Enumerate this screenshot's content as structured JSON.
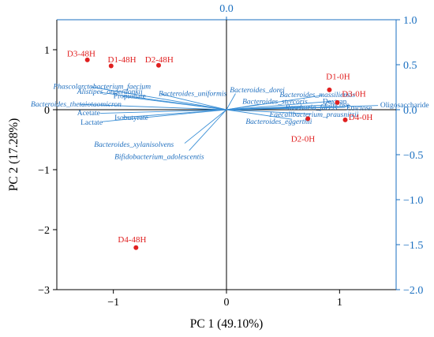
{
  "chart_data": {
    "type": "scatter",
    "subtype": "pca-biplot",
    "xlabel": "PC 1 (49.10%)",
    "ylabel": "PC 2 (17.28%)",
    "xlim": [
      -1.5,
      1.5
    ],
    "ylim": [
      -3,
      1.5
    ],
    "x_ticks": [
      -1,
      0,
      1
    ],
    "x_tick_labels": [
      "−1",
      "0",
      "1"
    ],
    "y_ticks": [
      1,
      0,
      -1,
      -2,
      -3
    ],
    "y_tick_labels": [
      "1",
      "0",
      "−1",
      "−2",
      "−3"
    ],
    "secondary_axes": {
      "color": "#1a6fc0",
      "top_tick_label": "0.0",
      "right_ylim": [
        -2.0,
        1.0
      ],
      "right_ticks": [
        1.0,
        0.5,
        0.0,
        -0.5,
        -1.0,
        -1.5,
        -2.0
      ],
      "right_tick_labels": [
        "1.0",
        "0.5",
        "0.0",
        "−0.5",
        "−1.0",
        "−1.5",
        "−2.0"
      ]
    },
    "grid": false,
    "zero_lines": true,
    "colors": {
      "scores": "#e02020",
      "loadings": "#3a8fd6",
      "loading_labels": "#1f6fbf",
      "secondary_axis": "#1a6fc0"
    },
    "scores": [
      {
        "label": "D3-48H",
        "x": -1.23,
        "y": 0.83
      },
      {
        "label": "D1-48H",
        "x": -1.02,
        "y": 0.73
      },
      {
        "label": "D2-48H",
        "x": -0.6,
        "y": 0.74
      },
      {
        "label": "D4-48H",
        "x": -0.8,
        "y": -2.3
      },
      {
        "label": "D1-0H",
        "x": 0.91,
        "y": 0.33
      },
      {
        "label": "D3-0H",
        "x": 0.98,
        "y": 0.12
      },
      {
        "label": "D4-0H",
        "x": 1.05,
        "y": -0.17
      },
      {
        "label": "D2-0H",
        "x": 0.72,
        "y": -0.15
      }
    ],
    "loadings": [
      {
        "label": "Phascolarctobacterium_faecium",
        "x": -1.2,
        "y": 0.38,
        "italic": true
      },
      {
        "label": "Alistipes_onderdonkii",
        "x": -1.12,
        "y": 0.29,
        "italic": true
      },
      {
        "label": "Propionate",
        "x": -0.92,
        "y": 0.22,
        "italic": false
      },
      {
        "label": "Bacteroides_uniformis",
        "x": -0.58,
        "y": 0.26,
        "italic": true
      },
      {
        "label": "Bacteroides_thetaiotaomicron",
        "x": -1.3,
        "y": 0.09,
        "italic": true
      },
      {
        "label": "Acetate",
        "x": -1.12,
        "y": -0.06,
        "italic": false
      },
      {
        "label": "Isobutyrate",
        "x": -0.92,
        "y": -0.13,
        "italic": false
      },
      {
        "label": "Lactate",
        "x": -1.1,
        "y": -0.2,
        "italic": false
      },
      {
        "label": "Bacteroides_xylanisolvens",
        "x": -0.37,
        "y": -0.56,
        "italic": true
      },
      {
        "label": "Bifidobacterium_adolescentis",
        "x": -0.33,
        "y": -0.68,
        "italic": true
      },
      {
        "label": "Bacteroides_dorei",
        "x": 0.08,
        "y": 0.27,
        "italic": true
      },
      {
        "label": "Bacteroides_massiliensis",
        "x": 0.85,
        "y": 0.24,
        "italic": true
      },
      {
        "label": "Bacteroides_stercoris",
        "x": 0.29,
        "y": 0.09,
        "italic": true
      },
      {
        "label": "Dextran",
        "x": 0.93,
        "y": 0.14,
        "italic": false
      },
      {
        "label": "Glucose",
        "x": 0.9,
        "y": 0.08,
        "italic": false
      },
      {
        "label": "Roseburia_faecis",
        "x": 0.66,
        "y": 0.05,
        "italic": true
      },
      {
        "label": "Fructose",
        "x": 1.05,
        "y": 0.04,
        "italic": false
      },
      {
        "label": "Oligosaccharide",
        "x": 1.34,
        "y": 0.07,
        "italic": false
      },
      {
        "label": "Faecalibacterium_prausnitzii",
        "x": 0.75,
        "y": -0.07,
        "italic": true
      },
      {
        "label": "Bacteroides_eggerthii",
        "x": 0.58,
        "y": -0.16,
        "italic": true
      }
    ]
  }
}
